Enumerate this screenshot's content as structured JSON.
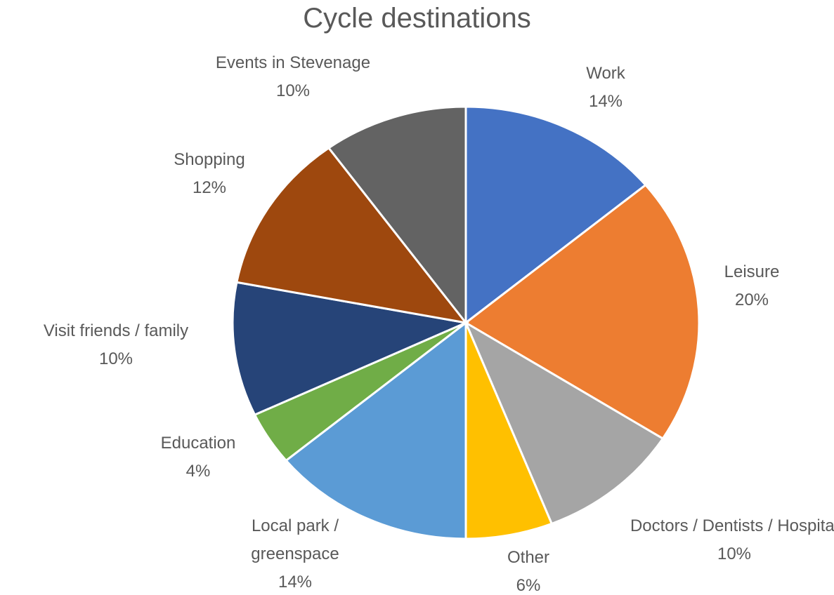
{
  "chart_data": {
    "type": "pie",
    "title": "Cycle destinations",
    "categories": [
      "Work",
      "Leisure",
      "Doctors / Dentists / Hospital",
      "Other",
      "Local park / greenspace",
      "Education",
      "Visit friends / family",
      "Shopping",
      "Events in Stevenage"
    ],
    "values": [
      14,
      20,
      10,
      6,
      14,
      4,
      10,
      12,
      10
    ],
    "value_labels": [
      "14%",
      "20%",
      "10%",
      "6%",
      "14%",
      "4%",
      "10%",
      "12%",
      "10%"
    ],
    "colors": [
      "#4472c4",
      "#ed7d31",
      "#a5a5a5",
      "#ffc000",
      "#5b9bd5",
      "#70ad47",
      "#264478",
      "#9e480e",
      "#636363"
    ]
  }
}
